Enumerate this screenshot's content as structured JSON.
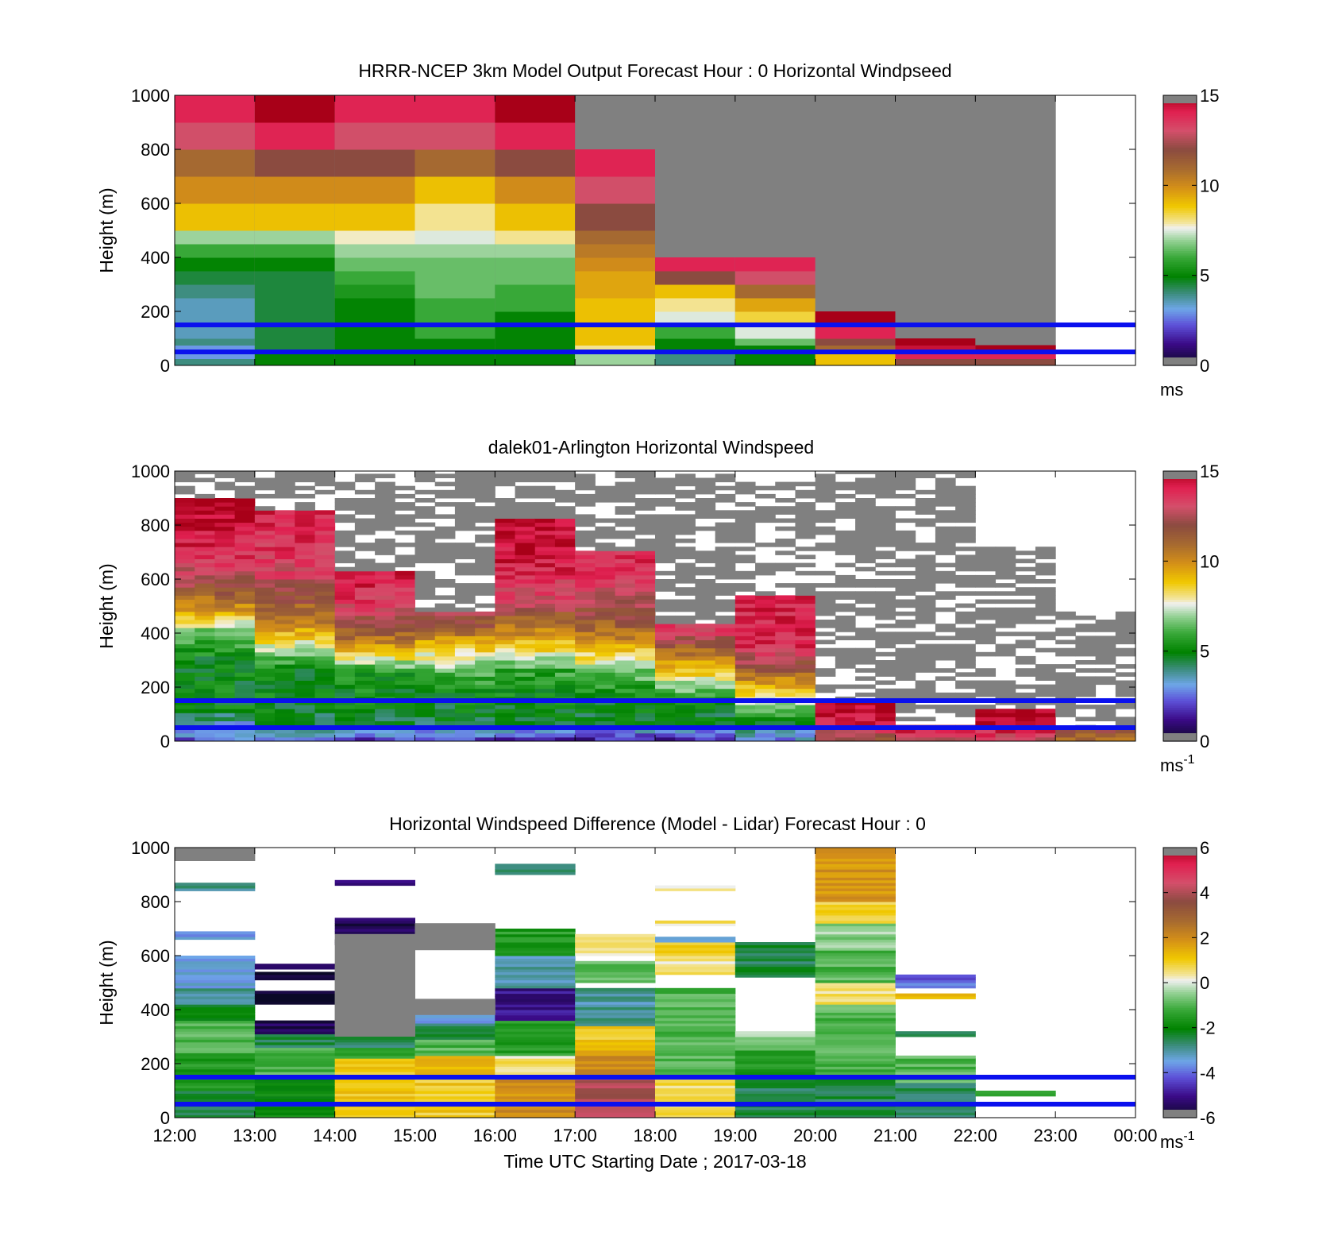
{
  "figure": {
    "xlabel": "Time UTC  Starting Date ; 2017-03-18",
    "xticks": [
      "12:00",
      "13:00",
      "14:00",
      "15:00",
      "16:00",
      "17:00",
      "18:00",
      "19:00",
      "20:00",
      "21:00",
      "22:00",
      "23:00",
      "00:00"
    ],
    "reference_lines_m": [
      150,
      50
    ],
    "reference_line_color": "#0a10ee"
  },
  "chart_data": [
    {
      "type": "heatmap",
      "title": "HRRR-NCEP 3km Model Output   Forecast Hour : 0 Horizontal Windpseed",
      "ylabel": "Height (m)",
      "ylim": [
        0,
        1000
      ],
      "yticks": [
        "0",
        "200",
        "400",
        "600",
        "800",
        "1000"
      ],
      "colorbar": {
        "min": 0,
        "max": 15,
        "ticks": [
          "0",
          "5",
          "10",
          "15"
        ],
        "unit": "ms",
        "unit_sup": ""
      },
      "levels_m": [
        25,
        50,
        75,
        100,
        150,
        200,
        250,
        300,
        350,
        400,
        450,
        500,
        600,
        700,
        800,
        900,
        1000
      ],
      "columns": [
        {
          "time": "12:00",
          "values": [
            4,
            3,
            3,
            4,
            3.5,
            3.5,
            3.5,
            4,
            4.5,
            5,
            6,
            7,
            9,
            10,
            11,
            13,
            14
          ]
        },
        {
          "time": "13:00",
          "values": [
            5,
            5,
            4.5,
            4.5,
            4.5,
            4.5,
            4.5,
            4.5,
            4.5,
            5,
            6,
            7,
            9,
            10,
            12,
            14,
            15
          ]
        },
        {
          "time": "14:00",
          "values": [
            5,
            5,
            5,
            5,
            5,
            5,
            5,
            5.5,
            6,
            6.5,
            7,
            7.8,
            9,
            10,
            12,
            13,
            14
          ]
        },
        {
          "time": "15:00",
          "values": [
            5,
            5,
            5,
            5,
            6,
            6,
            6,
            6.5,
            6.5,
            6.5,
            7,
            7.5,
            8,
            9,
            11,
            13,
            14
          ]
        },
        {
          "time": "16:00",
          "values": [
            5,
            5,
            5,
            5,
            5,
            5,
            6,
            6,
            6.5,
            6.5,
            7,
            8,
            9,
            10,
            12,
            14,
            15
          ]
        },
        {
          "time": "17:00",
          "values": [
            7,
            7,
            8,
            9,
            9,
            9,
            9,
            9.5,
            9.5,
            10,
            10.5,
            11,
            12,
            13,
            14,
            null,
            null
          ]
        },
        {
          "time": "18:00",
          "values": [
            4,
            4,
            5,
            5,
            6,
            7.5,
            8,
            9,
            12,
            14,
            null,
            null,
            null,
            null,
            null,
            null,
            null
          ]
        },
        {
          "time": "19:00",
          "values": [
            5,
            5,
            5,
            6.5,
            7.5,
            8.5,
            9.5,
            11,
            13,
            14,
            null,
            null,
            null,
            null,
            null,
            null,
            null
          ]
        },
        {
          "time": "20:00",
          "values": [
            9,
            9,
            11,
            12,
            14,
            15,
            null,
            null,
            null,
            null,
            null,
            null,
            null,
            null,
            null,
            null,
            null
          ]
        },
        {
          "time": "21:00",
          "values": [
            12,
            14,
            14.5,
            15,
            null,
            null,
            null,
            null,
            null,
            null,
            null,
            null,
            null,
            null,
            null,
            null,
            null
          ]
        },
        {
          "time": "22:00",
          "values": [
            12,
            14,
            15,
            null,
            null,
            null,
            null,
            null,
            null,
            null,
            null,
            null,
            null,
            null,
            null,
            null,
            null
          ]
        },
        {
          "time": "23:00",
          "values": [
            null,
            null,
            null,
            null,
            null,
            null,
            null,
            null,
            null,
            null,
            null,
            null,
            null,
            null,
            null,
            null,
            null
          ]
        }
      ],
      "missing_region_top_m": [
        1000,
        1000,
        1000,
        1000,
        1000,
        1000,
        1000,
        1000,
        1000,
        1000,
        1000,
        null
      ]
    },
    {
      "type": "heatmap",
      "title": "dalek01-Arlington  Horizontal Windspeed",
      "ylabel": "Height (m)",
      "ylim": [
        0,
        1000
      ],
      "yticks": [
        "0",
        "200",
        "400",
        "600",
        "800",
        "1000"
      ],
      "colorbar": {
        "min": 0,
        "max": 15,
        "ticks": [
          "0",
          "5",
          "10",
          "15"
        ],
        "unit": "ms",
        "unit_sup": "-1"
      },
      "profiles": [
        {
          "time": "12:00",
          "wind_knots_m": [
            [
              0,
              2.5
            ],
            [
              60,
              3.5
            ],
            [
              120,
              5
            ],
            [
              300,
              5
            ],
            [
              400,
              6.5
            ],
            [
              460,
              9
            ],
            [
              560,
              12
            ],
            [
              700,
              14
            ],
            [
              850,
              15
            ]
          ],
          "data_top_m": 900
        },
        {
          "time": "13:00",
          "wind_knots_m": [
            [
              0,
              2.5
            ],
            [
              60,
              4.5
            ],
            [
              150,
              5
            ],
            [
              260,
              5
            ],
            [
              320,
              7
            ],
            [
              420,
              10
            ],
            [
              600,
              13
            ],
            [
              750,
              14
            ]
          ],
          "data_top_m": 850
        },
        {
          "time": "14:00",
          "wind_knots_m": [
            [
              0,
              2
            ],
            [
              60,
              4.5
            ],
            [
              150,
              5
            ],
            [
              250,
              5.5
            ],
            [
              300,
              8
            ],
            [
              380,
              11
            ],
            [
              500,
              13.5
            ],
            [
              700,
              15
            ]
          ],
          "data_top_m": 620
        },
        {
          "time": "15:00",
          "wind_knots_m": [
            [
              0,
              2
            ],
            [
              60,
              4.5
            ],
            [
              150,
              5
            ],
            [
              250,
              6.5
            ],
            [
              320,
              8
            ],
            [
              400,
              11
            ],
            [
              500,
              13.5
            ]
          ],
          "data_top_m": 470
        },
        {
          "time": "16:00",
          "wind_knots_m": [
            [
              0,
              1.5
            ],
            [
              60,
              4.5
            ],
            [
              150,
              5
            ],
            [
              260,
              6
            ],
            [
              330,
              8.5
            ],
            [
              430,
              11
            ],
            [
              520,
              13
            ],
            [
              700,
              14.5
            ]
          ],
          "data_top_m": 820
        },
        {
          "time": "17:00",
          "wind_knots_m": [
            [
              0,
              1.5
            ],
            [
              60,
              4.5
            ],
            [
              150,
              5
            ],
            [
              240,
              6.5
            ],
            [
              300,
              8
            ],
            [
              380,
              10.5
            ],
            [
              500,
              12.5
            ],
            [
              650,
              14
            ]
          ],
          "data_top_m": 700
        },
        {
          "time": "18:00",
          "wind_knots_m": [
            [
              0,
              1.5
            ],
            [
              60,
              4.5
            ],
            [
              150,
              5.5
            ],
            [
              200,
              7
            ],
            [
              260,
              9
            ],
            [
              330,
              11
            ],
            [
              400,
              13.5
            ]
          ],
          "data_top_m": 430
        },
        {
          "time": "19:00",
          "wind_knots_m": [
            [
              0,
              3
            ],
            [
              70,
              5
            ],
            [
              130,
              7
            ],
            [
              190,
              9
            ],
            [
              260,
              11.5
            ],
            [
              350,
              14
            ]
          ],
          "data_top_m": 540
        },
        {
          "time": "20:00",
          "wind_knots_m": [
            [
              0,
              12
            ],
            [
              60,
              14
            ],
            [
              130,
              15
            ]
          ],
          "data_top_m": 140
        },
        {
          "time": "21:00",
          "wind_knots_m": [
            [
              0,
              13
            ],
            [
              60,
              15
            ]
          ],
          "data_top_m": 60
        },
        {
          "time": "22:00",
          "wind_knots_m": [
            [
              0,
              13
            ],
            [
              60,
              15
            ]
          ],
          "data_top_m": 120
        },
        {
          "time": "23:00",
          "wind_knots_m": [
            [
              0,
              11
            ],
            [
              60,
              13
            ]
          ],
          "data_top_m": 40
        }
      ],
      "missing_region_top_m": [
        1000,
        1000,
        980,
        1000,
        1000,
        1000,
        990,
        960,
        1000,
        1000,
        720,
        480
      ]
    },
    {
      "type": "heatmap",
      "title": "Horizontal Windspeed Difference (Model - Lidar) Forecast Hour : 0",
      "ylabel": "Height (m)",
      "ylim": [
        0,
        1000
      ],
      "yticks": [
        "0",
        "200",
        "400",
        "600",
        "800",
        "1000"
      ],
      "colorbar": {
        "min": -6,
        "max": 6,
        "ticks": [
          "-6",
          "-4",
          "-2",
          "0",
          "2",
          "4",
          "6"
        ],
        "unit": "ms",
        "unit_sup": "-1"
      },
      "columns": [
        {
          "time": "12:00",
          "bands": [
            [
              0,
              100,
              -2.5
            ],
            [
              100,
              240,
              -1.5
            ],
            [
              240,
              360,
              -1
            ],
            [
              360,
              420,
              -2
            ],
            [
              420,
              480,
              -3
            ],
            [
              480,
              600,
              -3.5
            ],
            [
              660,
              690,
              -3.5
            ],
            [
              840,
              870,
              -3
            ]
          ]
        },
        {
          "time": "13:00",
          "bands": [
            [
              0,
              150,
              -1.8
            ],
            [
              150,
              260,
              -1
            ],
            [
              260,
              310,
              -2.5
            ],
            [
              310,
              360,
              -5.5
            ],
            [
              420,
              470,
              -6
            ],
            [
              510,
              540,
              -6
            ],
            [
              550,
              570,
              -5
            ]
          ]
        },
        {
          "time": "14:00",
          "bands": [
            [
              0,
              150,
              1
            ],
            [
              150,
              220,
              1
            ],
            [
              220,
              260,
              -1.5
            ],
            [
              260,
              300,
              -2.5
            ],
            [
              640,
              660,
              -6
            ],
            [
              680,
              740,
              -5.5
            ],
            [
              860,
              880,
              -5
            ]
          ]
        },
        {
          "time": "15:00",
          "bands": [
            [
              0,
              150,
              1
            ],
            [
              150,
              230,
              1.5
            ],
            [
              230,
              290,
              -1
            ],
            [
              290,
              350,
              -2.5
            ],
            [
              350,
              400,
              -3.5
            ],
            [
              400,
              420,
              -5
            ]
          ]
        },
        {
          "time": "16:00",
          "bands": [
            [
              0,
              150,
              2
            ],
            [
              150,
              230,
              0.5
            ],
            [
              230,
              360,
              -1.5
            ],
            [
              360,
              480,
              -5
            ],
            [
              480,
              600,
              -3
            ],
            [
              600,
              700,
              -1.5
            ],
            [
              900,
              940,
              -2.5
            ]
          ]
        },
        {
          "time": "17:00",
          "bands": [
            [
              0,
              150,
              4
            ],
            [
              150,
              250,
              2
            ],
            [
              250,
              340,
              1
            ],
            [
              340,
              480,
              -3
            ],
            [
              500,
              580,
              -1
            ],
            [
              600,
              680,
              0.5
            ]
          ]
        },
        {
          "time": "18:00",
          "bands": [
            [
              0,
              40,
              1
            ],
            [
              40,
              150,
              0.7
            ],
            [
              150,
              230,
              -1
            ],
            [
              230,
              480,
              -1
            ],
            [
              530,
              580,
              0.5
            ],
            [
              580,
              650,
              0.8
            ],
            [
              650,
              670,
              -3.5
            ],
            [
              710,
              730,
              0.5
            ],
            [
              840,
              860,
              0.2
            ]
          ]
        },
        {
          "time": "19:00",
          "bands": [
            [
              0,
              150,
              -2.5
            ],
            [
              150,
              250,
              -1.5
            ],
            [
              250,
              320,
              -0.5
            ],
            [
              520,
              600,
              -2.5
            ],
            [
              600,
              650,
              -2.5
            ]
          ]
        },
        {
          "time": "20:00",
          "bands": [
            [
              0,
              150,
              -2.5
            ],
            [
              150,
              420,
              -1
            ],
            [
              420,
              500,
              0.5
            ],
            [
              500,
              620,
              -1
            ],
            [
              620,
              720,
              -0.5
            ],
            [
              720,
              800,
              0.8
            ],
            [
              800,
              1000,
              1.8
            ]
          ]
        },
        {
          "time": "21:00",
          "bands": [
            [
              0,
              130,
              -2.5
            ],
            [
              130,
              230,
              -1
            ],
            [
              300,
              320,
              -2.5
            ],
            [
              440,
              460,
              1.5
            ],
            [
              480,
              530,
              -4
            ]
          ]
        },
        {
          "time": "22:00",
          "bands": [
            [
              80,
              100,
              -1.5
            ]
          ]
        },
        {
          "time": "23:00",
          "bands": []
        }
      ],
      "missing_bands_m": [
        [
          950,
          1000
        ],
        [
          320,
          560
        ],
        [
          300,
          680
        ],
        [
          620,
          720
        ],
        [
          380,
          440
        ]
      ]
    }
  ]
}
